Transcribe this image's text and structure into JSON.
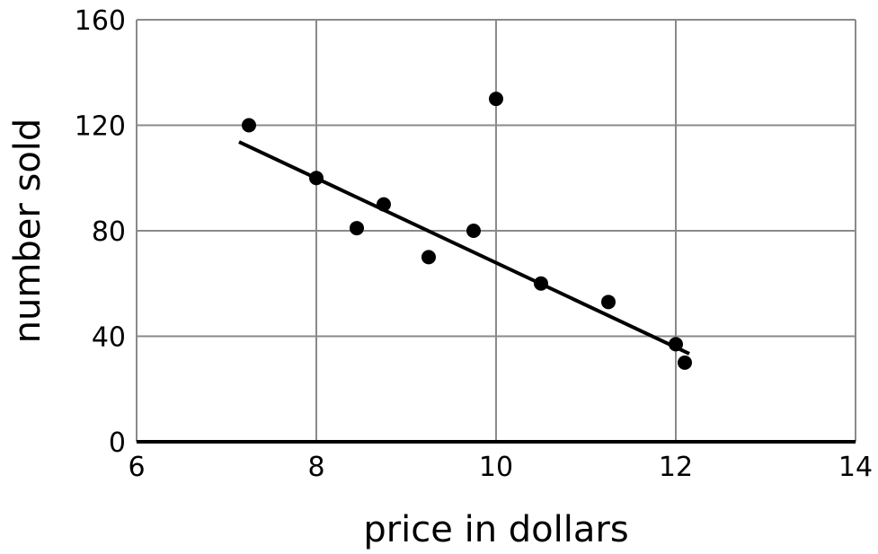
{
  "chart_data": {
    "type": "scatter",
    "title": "",
    "xlabel": "price in dollars",
    "ylabel": "number sold",
    "xlim": [
      6,
      14
    ],
    "ylim": [
      0,
      160
    ],
    "xticks": [
      6,
      8,
      10,
      12,
      14
    ],
    "yticks": [
      0,
      40,
      80,
      120,
      160
    ],
    "grid": true,
    "points": [
      {
        "x": 7.25,
        "y": 120
      },
      {
        "x": 8,
        "y": 100
      },
      {
        "x": 8.45,
        "y": 81
      },
      {
        "x": 8.75,
        "y": 90
      },
      {
        "x": 9.25,
        "y": 70
      },
      {
        "x": 9.75,
        "y": 80
      },
      {
        "x": 10,
        "y": 130
      },
      {
        "x": 10.5,
        "y": 60
      },
      {
        "x": 11.25,
        "y": 53
      },
      {
        "x": 12,
        "y": 37
      },
      {
        "x": 12.1,
        "y": 30
      }
    ],
    "fit_line": {
      "x": [
        7.14,
        12.15
      ],
      "y": [
        113.7,
        33.4
      ]
    },
    "colors": {
      "points": "#000000",
      "line": "#000000",
      "grid": "#8a8a8a"
    }
  }
}
